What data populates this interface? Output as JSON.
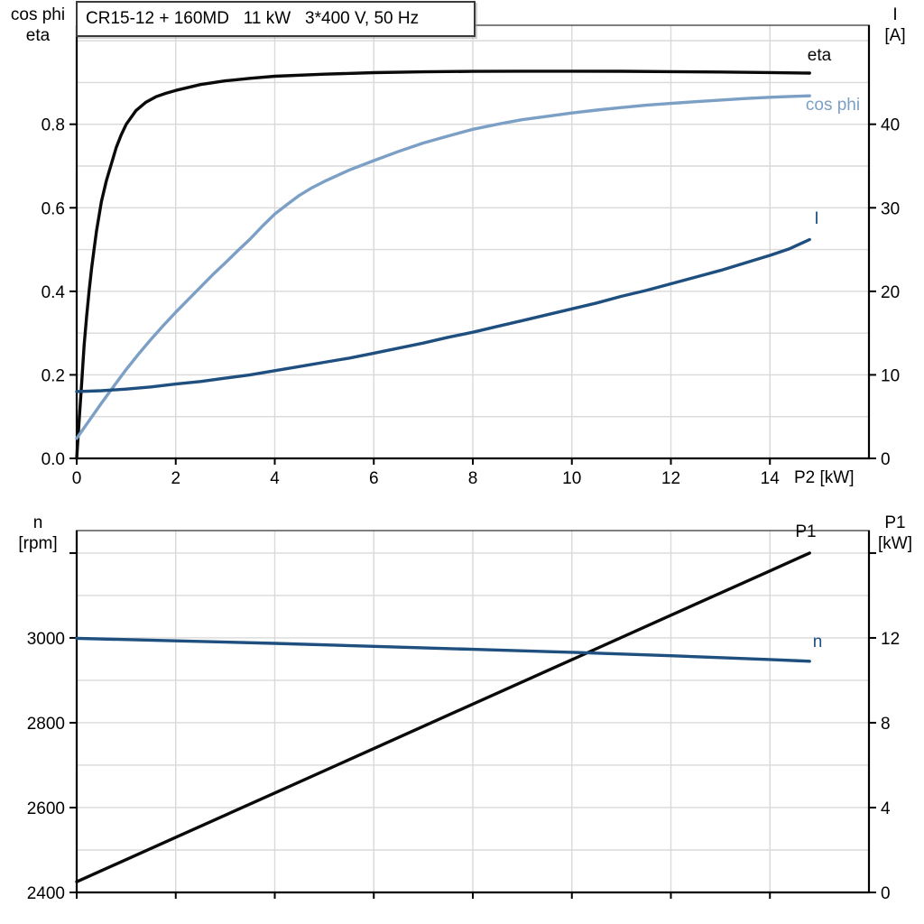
{
  "colors": {
    "eta": "#0A0A0A",
    "cos_phi": "#7C9FC5",
    "current": "#1E4F7F",
    "p1": "#0A0A0A",
    "n": "#1E4F7F",
    "grid": "#D9D9D9",
    "axis": "#000000",
    "frame_top": "#555555"
  },
  "chart_data": [
    {
      "id": "motor-electrical",
      "type": "line",
      "title": "CR15-12 + 160MD   11 kW   3*400 V, 50 Hz",
      "x_axis": {
        "label": "P2 [kW]",
        "range": [
          0,
          16
        ],
        "ticks": [
          0,
          2,
          4,
          6,
          8,
          10,
          12,
          14
        ],
        "tick_labels": [
          "0",
          "2",
          "4",
          "6",
          "8",
          "10",
          "12",
          "14"
        ]
      },
      "y_left": {
        "label_lines": [
          "cos phi",
          "eta"
        ],
        "range": [
          0,
          1.037
        ],
        "ticks": [
          0.0,
          0.2,
          0.4,
          0.6,
          0.8
        ],
        "tick_labels": [
          "0.0",
          "0.2",
          "0.4",
          "0.6",
          "0.8"
        ]
      },
      "y_right": {
        "label_lines": [
          "I",
          "[A]"
        ],
        "range": [
          0,
          51.85
        ],
        "ticks": [
          0,
          10,
          20,
          30,
          40
        ],
        "tick_labels": [
          "0",
          "10",
          "20",
          "30",
          "40"
        ]
      },
      "grid": {
        "x_values": [
          2,
          4,
          6,
          8,
          10,
          12,
          14
        ],
        "y_values": [
          0.1,
          0.2,
          0.3,
          0.4,
          0.5,
          0.6,
          0.7,
          0.8,
          0.9,
          1.0
        ]
      },
      "series": [
        {
          "name": "eta",
          "label": "eta",
          "axis": "left",
          "color_key": "eta",
          "points": [
            [
              0,
              0
            ],
            [
              0.05,
              0.09
            ],
            [
              0.1,
              0.18
            ],
            [
              0.15,
              0.27
            ],
            [
              0.2,
              0.34
            ],
            [
              0.25,
              0.4
            ],
            [
              0.3,
              0.455
            ],
            [
              0.35,
              0.5
            ],
            [
              0.4,
              0.545
            ],
            [
              0.5,
              0.615
            ],
            [
              0.6,
              0.665
            ],
            [
              0.7,
              0.705
            ],
            [
              0.8,
              0.745
            ],
            [
              0.9,
              0.775
            ],
            [
              1.0,
              0.8
            ],
            [
              1.2,
              0.833
            ],
            [
              1.4,
              0.853
            ],
            [
              1.6,
              0.866
            ],
            [
              1.8,
              0.874
            ],
            [
              2.0,
              0.881
            ],
            [
              2.5,
              0.895
            ],
            [
              3,
              0.904
            ],
            [
              3.5,
              0.91
            ],
            [
              4,
              0.915
            ],
            [
              5,
              0.92
            ],
            [
              6,
              0.9235
            ],
            [
              7,
              0.9255
            ],
            [
              8,
              0.9265
            ],
            [
              9,
              0.927
            ],
            [
              10,
              0.927
            ],
            [
              11,
              0.9268
            ],
            [
              12,
              0.926
            ],
            [
              13,
              0.925
            ],
            [
              14,
              0.9238
            ],
            [
              14.8,
              0.9225
            ]
          ]
        },
        {
          "name": "cos phi",
          "label": "cos phi",
          "axis": "left",
          "color_key": "cos_phi",
          "points": [
            [
              0,
              0.048
            ],
            [
              0.25,
              0.09
            ],
            [
              0.5,
              0.132
            ],
            [
              0.75,
              0.173
            ],
            [
              1,
              0.213
            ],
            [
              1.25,
              0.25
            ],
            [
              1.5,
              0.285
            ],
            [
              1.75,
              0.318
            ],
            [
              2,
              0.35
            ],
            [
              2.25,
              0.38
            ],
            [
              2.5,
              0.41
            ],
            [
              2.75,
              0.44
            ],
            [
              3,
              0.468
            ],
            [
              3.25,
              0.497
            ],
            [
              3.5,
              0.525
            ],
            [
              3.75,
              0.556
            ],
            [
              4,
              0.585
            ],
            [
              4.25,
              0.608
            ],
            [
              4.5,
              0.63
            ],
            [
              4.75,
              0.648
            ],
            [
              5,
              0.663
            ],
            [
              5.5,
              0.69
            ],
            [
              6,
              0.713
            ],
            [
              6.5,
              0.735
            ],
            [
              7,
              0.755
            ],
            [
              7.5,
              0.772
            ],
            [
              8,
              0.788
            ],
            [
              8.5,
              0.8
            ],
            [
              9,
              0.811
            ],
            [
              9.5,
              0.819
            ],
            [
              10,
              0.827
            ],
            [
              10.5,
              0.834
            ],
            [
              11,
              0.84
            ],
            [
              11.5,
              0.8455
            ],
            [
              12,
              0.85
            ],
            [
              12.5,
              0.854
            ],
            [
              13,
              0.858
            ],
            [
              13.5,
              0.8615
            ],
            [
              14,
              0.8645
            ],
            [
              14.4,
              0.8665
            ],
            [
              14.8,
              0.868
            ]
          ]
        },
        {
          "name": "I",
          "label": "I",
          "axis": "right",
          "color_key": "current",
          "points": [
            [
              0,
              8.0
            ],
            [
              0.5,
              8.1
            ],
            [
              1,
              8.3
            ],
            [
              1.5,
              8.55
            ],
            [
              2,
              8.9
            ],
            [
              2.5,
              9.2
            ],
            [
              3,
              9.6
            ],
            [
              3.5,
              10.0
            ],
            [
              4,
              10.5
            ],
            [
              4.5,
              11.0
            ],
            [
              5,
              11.5
            ],
            [
              5.5,
              12.0
            ],
            [
              6,
              12.6
            ],
            [
              6.5,
              13.2
            ],
            [
              7,
              13.8
            ],
            [
              7.5,
              14.5
            ],
            [
              8,
              15.1
            ],
            [
              8.5,
              15.8
            ],
            [
              9,
              16.5
            ],
            [
              9.5,
              17.2
            ],
            [
              10,
              17.9
            ],
            [
              10.5,
              18.6
            ],
            [
              11,
              19.4
            ],
            [
              11.5,
              20.1
            ],
            [
              12,
              20.9
            ],
            [
              12.5,
              21.7
            ],
            [
              13,
              22.5
            ],
            [
              13.5,
              23.4
            ],
            [
              14,
              24.3
            ],
            [
              14.4,
              25.1
            ],
            [
              14.8,
              26.2
            ]
          ]
        }
      ]
    },
    {
      "id": "speed-power",
      "type": "line",
      "title": "",
      "x_axis": {
        "label": "",
        "range": [
          0,
          16
        ],
        "ticks": [
          0,
          2,
          4,
          6,
          8,
          10,
          12,
          14
        ]
      },
      "y_left": {
        "label_lines": [
          "n",
          "[rpm]"
        ],
        "range": [
          2400,
          3253
        ],
        "ticks": [
          2400,
          2600,
          2800,
          3000
        ],
        "tick_labels": [
          "2400",
          "2600",
          "2800",
          "3000"
        ],
        "extra_ticks": [
          3200
        ]
      },
      "y_right": {
        "label_lines": [
          "P1",
          "[kW]"
        ],
        "range": [
          0,
          17.06
        ],
        "ticks": [
          0,
          4,
          8,
          12
        ],
        "tick_labels": [
          "0",
          "4",
          "8",
          "12"
        ],
        "extra_ticks": [
          16
        ]
      },
      "grid": {
        "x_values": [
          2,
          4,
          6,
          8,
          10,
          12,
          14
        ],
        "y_values": [
          2500,
          2600,
          2700,
          2800,
          2900,
          3000,
          3100,
          3200
        ]
      },
      "series": [
        {
          "name": "P1",
          "label": "P1",
          "axis": "right",
          "color_key": "p1",
          "points": [
            [
              0,
              0.5
            ],
            [
              2,
              2.6
            ],
            [
              4,
              4.69
            ],
            [
              6,
              6.78
            ],
            [
              8,
              8.88
            ],
            [
              10,
              10.97
            ],
            [
              12,
              13.07
            ],
            [
              14,
              15.16
            ],
            [
              14.8,
              16.0
            ]
          ]
        },
        {
          "name": "n",
          "label": "n",
          "axis": "left",
          "color_key": "n",
          "points": [
            [
              0,
              2999
            ],
            [
              2,
              2993
            ],
            [
              4,
              2987
            ],
            [
              6,
              2980
            ],
            [
              8,
              2973
            ],
            [
              10,
              2966
            ],
            [
              12,
              2958
            ],
            [
              14,
              2949
            ],
            [
              14.8,
              2945
            ]
          ]
        }
      ]
    }
  ]
}
